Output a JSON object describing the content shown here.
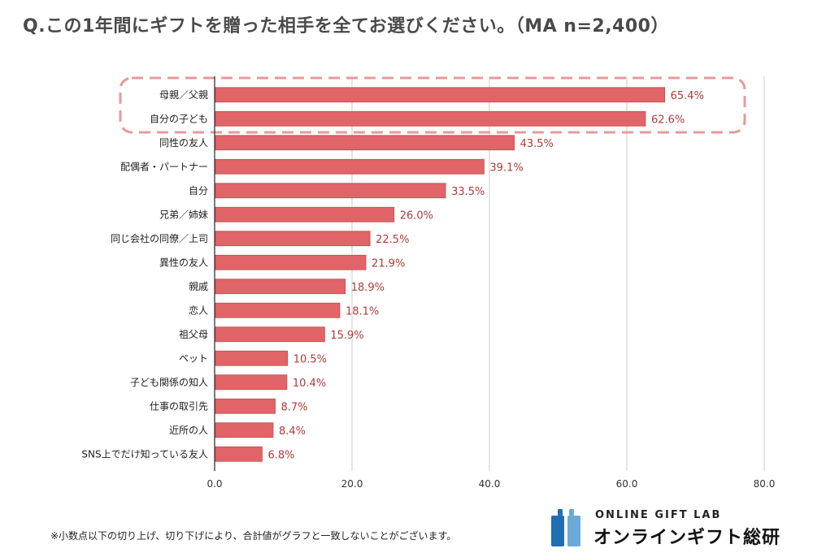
{
  "title": "Q.この1年間にギフトを贈った相手を全てお選びください。（MA n=2,400）",
  "footnote": "※小数点以下の切り上げ、切り下げにより、合計値がグラフと一致しないことがございます。",
  "brand": {
    "name_en": "ONLINE GIFT LAB",
    "name_ja": "オンラインギフト総研",
    "colors": [
      "#1f6fb2",
      "#6aa9d8"
    ]
  },
  "colors": {
    "bar": "#e06468",
    "bar_edge": "#c84a4e",
    "value_label": "#b23a3a",
    "highlight_box": "#e59a9a",
    "grid": "#cccccc"
  },
  "chart_data": {
    "type": "bar",
    "orientation": "horizontal",
    "categories": [
      "母親／父親",
      "自分の子ども",
      "同性の友人",
      "配偶者・パートナー",
      "自分",
      "兄弟／姉妹",
      "同じ会社の同僚／上司",
      "異性の友人",
      "親戚",
      "恋人",
      "祖父母",
      "ペット",
      "子ども関係の知人",
      "仕事の取引先",
      "近所の人",
      "SNS上でだけ知っている友人"
    ],
    "values": [
      65.4,
      62.6,
      43.5,
      39.1,
      33.5,
      26.0,
      22.5,
      21.9,
      18.9,
      18.1,
      15.9,
      10.5,
      10.4,
      8.7,
      8.4,
      6.8
    ],
    "value_labels": [
      "65.4%",
      "62.6%",
      "43.5%",
      "39.1%",
      "33.5%",
      "26.0%",
      "22.5%",
      "21.9%",
      "18.9%",
      "18.1%",
      "15.9%",
      "10.5%",
      "10.4%",
      "8.7%",
      "8.4%",
      "6.8%"
    ],
    "xlim": [
      0,
      80
    ],
    "xticks": [
      0,
      20,
      40,
      60,
      80
    ],
    "xtick_labels": [
      "0.0",
      "20.0",
      "40.0",
      "60.0",
      "80.0"
    ],
    "grid": true,
    "highlighted_categories": [
      0,
      1
    ]
  }
}
